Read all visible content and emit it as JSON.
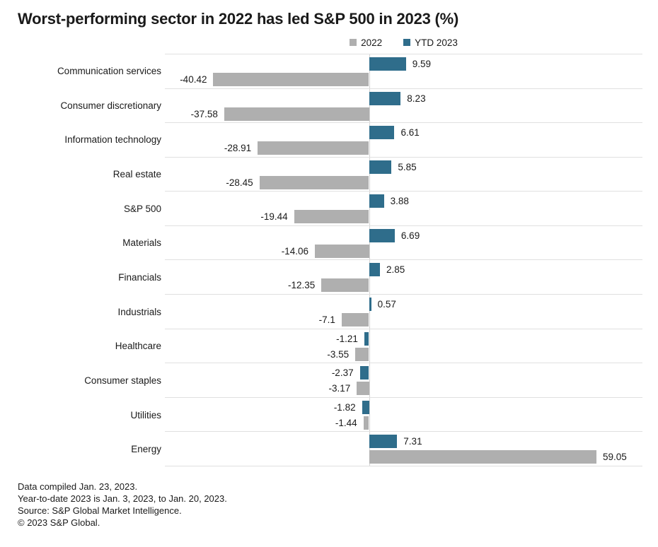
{
  "chart_data": {
    "type": "bar",
    "orientation": "horizontal",
    "title": "Worst-performing sector in 2022 has led S&P 500 in 2023 (%)",
    "categories": [
      "Communication services",
      "Consumer discretionary",
      "Information technology",
      "Real estate",
      "S&P 500",
      "Materials",
      "Financials",
      "Industrials",
      "Healthcare",
      "Consumer staples",
      "Utilities",
      "Energy"
    ],
    "series": [
      {
        "name": "2022",
        "color": "#afafaf",
        "values": [
          -40.42,
          -37.58,
          -28.91,
          -28.45,
          -19.44,
          -14.06,
          -12.35,
          -7.1,
          -3.55,
          -3.17,
          -1.44,
          59.05
        ]
      },
      {
        "name": "YTD 2023",
        "color": "#2f6d8b",
        "values": [
          9.59,
          8.23,
          6.61,
          5.85,
          3.88,
          6.69,
          2.85,
          0.57,
          -1.21,
          -2.37,
          -1.82,
          7.31
        ]
      }
    ],
    "xlim": [
      -53,
      71
    ],
    "grid": "row-dividers-only",
    "legend_position": "top-center",
    "value_labels": "at-bar-ends",
    "bar_stack_order": "YTD 2023 bar above 2022 bar in each category row"
  },
  "footnotes": [
    "Data compiled Jan. 23, 2023.",
    "Year-to-date 2023 is Jan. 3, 2023, to Jan. 20, 2023.",
    "Source: S&P Global Market Intelligence.",
    "© 2023 S&P Global."
  ]
}
